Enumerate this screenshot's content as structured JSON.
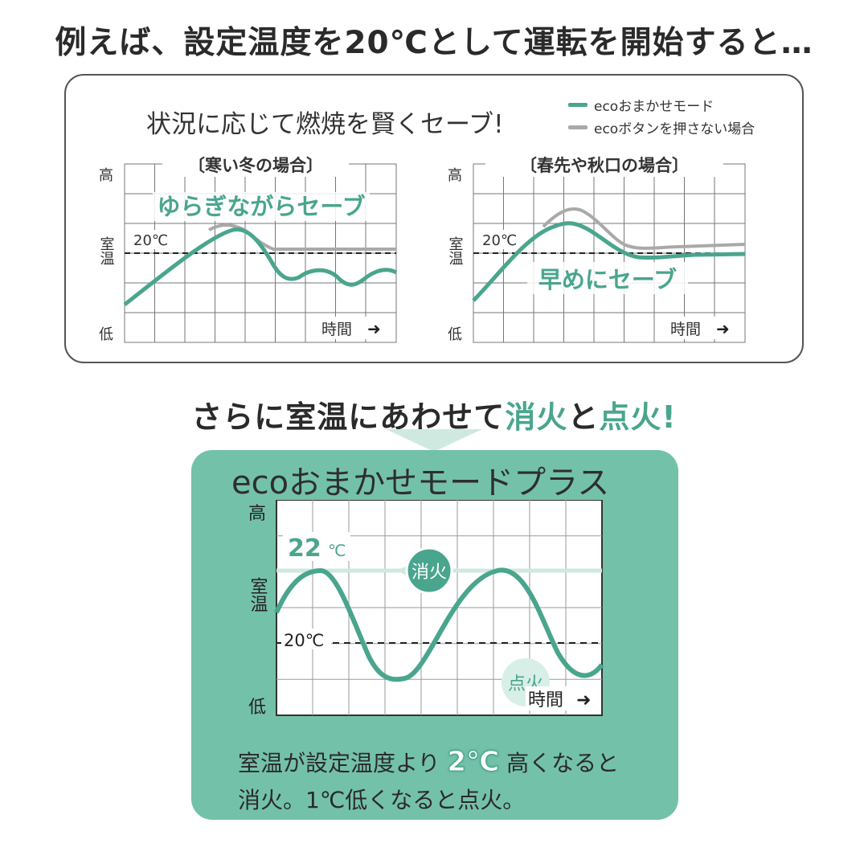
{
  "headline_top": "例えば、設定温度を20℃として運転を開始すると…",
  "panel": {
    "title": "状況に応じて燃焼を賢くセーブ!",
    "legend": [
      {
        "label": "ecoおまかせモード",
        "color": "#4aa58e"
      },
      {
        "label": "ecoボタンを押さない場合",
        "color": "#a9a9a9"
      }
    ],
    "chart_left": {
      "title": "〔寒い冬の場合〕",
      "y_high": "高",
      "y_mid": "室温",
      "y_low": "低",
      "setpoint_label": "20℃",
      "annotation": "ゆらぎながらセーブ",
      "x_label": "時間",
      "arrow": "➜"
    },
    "chart_right": {
      "title": "〔春先や秋口の場合〕",
      "y_high": "高",
      "y_mid": "室温",
      "y_low": "低",
      "setpoint_label": "20℃",
      "annotation": "早めにセーブ",
      "x_label": "時間",
      "arrow": "➜"
    }
  },
  "headline_mid": {
    "part1": "さらに室温にあわせて",
    "hl1": "消火",
    "part2": "と",
    "hl2": "点火",
    "end": "!"
  },
  "plus_box": {
    "title": "ecoおまかせモードプラス",
    "y_high": "高",
    "y_mid": "室温",
    "y_low": "低",
    "upper_value": "22",
    "upper_unit": "℃",
    "setpoint_label": "20℃",
    "off_label": "消火",
    "on_label": "点火",
    "x_label": "時間",
    "arrow": "➜",
    "desc_line1_a": "室温が設定温度より",
    "desc_badge": "2℃",
    "desc_line1_b": "高くなると",
    "desc_line2": "消火。1℃低くなると点火。"
  },
  "colors": {
    "accent": "#4aa58e",
    "gray": "#a9a9a9",
    "box": "#74c1a9"
  }
}
